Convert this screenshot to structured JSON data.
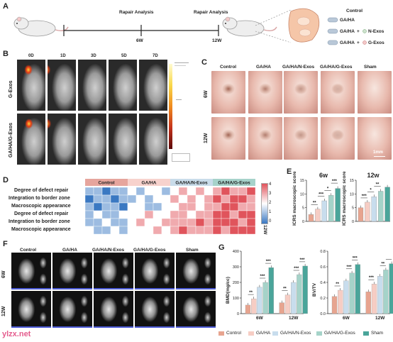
{
  "panelA": {
    "label": "A",
    "repair1": "Rapair Analysis",
    "repair2": "Rapair Analysis",
    "week1": "6W",
    "week2": "12W",
    "legend": {
      "control": "Control",
      "ga_ha": "GA/HA",
      "ga_ha_plus1": "GA/HA",
      "n_exos": "N-Exos",
      "ga_ha_plus2": "GA/HA",
      "g_exos": "G-Exos",
      "plus": "+"
    }
  },
  "panelB": {
    "label": "B",
    "days": [
      "0D",
      "1D",
      "3D",
      "5D",
      "7D"
    ],
    "rows": [
      "G-Exos",
      "GA/HA/G-Exos"
    ]
  },
  "panelC": {
    "label": "C",
    "groups": [
      "Control",
      "GA/HA",
      "GA/HA/N-Exos",
      "GA/HA/G-Exos",
      "Sham"
    ],
    "rows": [
      "6W",
      "12W"
    ],
    "scalebar": "1mm"
  },
  "panelD": {
    "label": "D",
    "groups": [
      "Control",
      "GA/HA",
      "GA/HA/N-Exos",
      "GA/HA/G-Exos"
    ],
    "rows": [
      "Degree of defect repair",
      "Integration to border zone",
      "Macroscopic appearance",
      "Degree of defect repair",
      "Integration to border zone",
      "Macroscopic appearance"
    ],
    "side": [
      "6W",
      "12W"
    ],
    "scale": [
      "4",
      "3",
      "2",
      "1",
      "0"
    ],
    "colors": {
      "low": "#3a78c2",
      "mid": "#ffffff",
      "high": "#e0545c"
    }
  },
  "panelE": {
    "label": "E",
    "titles": [
      "6w",
      "12w"
    ],
    "ylabel": "ICRS macroscopic score",
    "yticks": [
      "0",
      "5",
      "10",
      "15"
    ],
    "sig6": [
      "**",
      "***",
      "*",
      "***"
    ],
    "sig12": [
      "***",
      "*",
      "**"
    ]
  },
  "panelF": {
    "label": "F",
    "groups": [
      "Control",
      "GA/HA",
      "GA/HA/N-Exos",
      "GA/HA/G-Exos",
      "Sham"
    ],
    "rows": [
      "6W",
      "12W"
    ]
  },
  "panelG": {
    "label": "G",
    "bmd": {
      "ylabel": "BMD(mg/cc)",
      "yticks": [
        "0",
        "100",
        "200",
        "300",
        "400"
      ],
      "xcats": [
        "6W",
        "12W"
      ]
    },
    "bvtv": {
      "ylabel": "BV/TV",
      "yticks": [
        "0.0",
        "0.2",
        "0.4",
        "0.6",
        "0.8"
      ],
      "xcats": [
        "6W",
        "12W"
      ]
    },
    "sig_bmd": [
      "**",
      "***",
      "***",
      "**",
      "***",
      "***"
    ],
    "sig_bvtv": [
      "**",
      "***",
      "***",
      "***",
      "**"
    ],
    "legend": [
      "Control",
      "GA/HA",
      "GA/HA/N-Exos",
      "GA/HA/G-Exos",
      "Sham"
    ],
    "colors": [
      "#e7a48f",
      "#f6cdc4",
      "#c8dded",
      "#a5d3c9",
      "#4aa59a"
    ]
  },
  "watermark": "ylzx.net",
  "chart_data": [
    {
      "type": "bar",
      "categories": [
        "Control",
        "GA/HA",
        "GA/HA/N-Exos",
        "GA/HA/G-Exos",
        "Sham"
      ],
      "series": [
        {
          "values": [
            2.5,
            4.5,
            7.5,
            9.5,
            12.0
          ]
        }
      ],
      "title": "6w",
      "ylabel": "ICRS macroscopic score",
      "ylim": [
        0,
        15
      ]
    },
    {
      "type": "bar",
      "categories": [
        "Control",
        "GA/HA",
        "GA/HA/N-Exos",
        "GA/HA/G-Exos",
        "Sham"
      ],
      "series": [
        {
          "values": [
            5.0,
            7.0,
            9.0,
            11.0,
            12.5
          ]
        }
      ],
      "title": "12w",
      "ylabel": "ICRS macroscopic score",
      "ylim": [
        0,
        15
      ]
    },
    {
      "type": "bar",
      "categories": [
        "6W",
        "12W"
      ],
      "series": [
        {
          "name": "Control",
          "values": [
            55,
            70
          ]
        },
        {
          "name": "GA/HA",
          "values": [
            95,
            120
          ]
        },
        {
          "name": "GA/HA/N-Exos",
          "values": [
            170,
            200
          ]
        },
        {
          "name": "GA/HA/G-Exos",
          "values": [
            200,
            250
          ]
        },
        {
          "name": "Sham",
          "values": [
            295,
            305
          ]
        }
      ],
      "ylabel": "BMD(mg/cc)",
      "ylim": [
        0,
        400
      ]
    },
    {
      "type": "bar",
      "categories": [
        "6W",
        "12W"
      ],
      "series": [
        {
          "name": "Control",
          "values": [
            0.22,
            0.28
          ]
        },
        {
          "name": "GA/HA",
          "values": [
            0.3,
            0.38
          ]
        },
        {
          "name": "GA/HA/N-Exos",
          "values": [
            0.42,
            0.48
          ]
        },
        {
          "name": "GA/HA/G-Exos",
          "values": [
            0.52,
            0.56
          ]
        },
        {
          "name": "Sham",
          "values": [
            0.63,
            0.64
          ]
        }
      ],
      "ylabel": "BV/TV",
      "ylim": [
        0,
        0.8
      ]
    },
    {
      "type": "heatmap",
      "rows": [
        "Degree of defect repair",
        "Integration to border zone",
        "Macroscopic appearance",
        "Degree of defect repair",
        "Integration to border zone",
        "Macroscopic appearance"
      ],
      "columns": [
        "Control",
        "Control",
        "Control",
        "Control",
        "Control",
        "GA/HA",
        "GA/HA",
        "GA/HA",
        "GA/HA",
        "GA/HA",
        "GA/HA/N-Exos",
        "GA/HA/N-Exos",
        "GA/HA/N-Exos",
        "GA/HA/N-Exos",
        "GA/HA/N-Exos",
        "GA/HA/G-Exos",
        "GA/HA/G-Exos",
        "GA/HA/G-Exos",
        "GA/HA/G-Exos",
        "GA/HA/G-Exos"
      ],
      "values": [
        [
          1,
          1,
          0,
          1,
          1,
          2,
          1,
          2,
          2,
          1,
          2,
          3,
          2,
          3,
          2,
          3,
          4,
          3,
          3,
          4
        ],
        [
          0,
          1,
          1,
          0,
          1,
          1,
          2,
          1,
          2,
          2,
          3,
          2,
          3,
          2,
          3,
          4,
          3,
          4,
          4,
          3
        ],
        [
          1,
          0,
          1,
          1,
          0,
          2,
          2,
          1,
          1,
          2,
          2,
          3,
          3,
          2,
          3,
          3,
          4,
          4,
          3,
          3
        ],
        [
          1,
          2,
          1,
          1,
          2,
          2,
          2,
          3,
          2,
          2,
          3,
          3,
          2,
          3,
          3,
          4,
          4,
          3,
          4,
          4
        ],
        [
          1,
          1,
          2,
          1,
          1,
          2,
          3,
          2,
          2,
          3,
          3,
          3,
          3,
          4,
          3,
          4,
          4,
          4,
          3,
          4
        ],
        [
          2,
          1,
          1,
          2,
          1,
          2,
          2,
          2,
          3,
          2,
          3,
          4,
          3,
          3,
          3,
          4,
          3,
          4,
          4,
          4
        ]
      ],
      "ylim": [
        0,
        4
      ]
    }
  ]
}
